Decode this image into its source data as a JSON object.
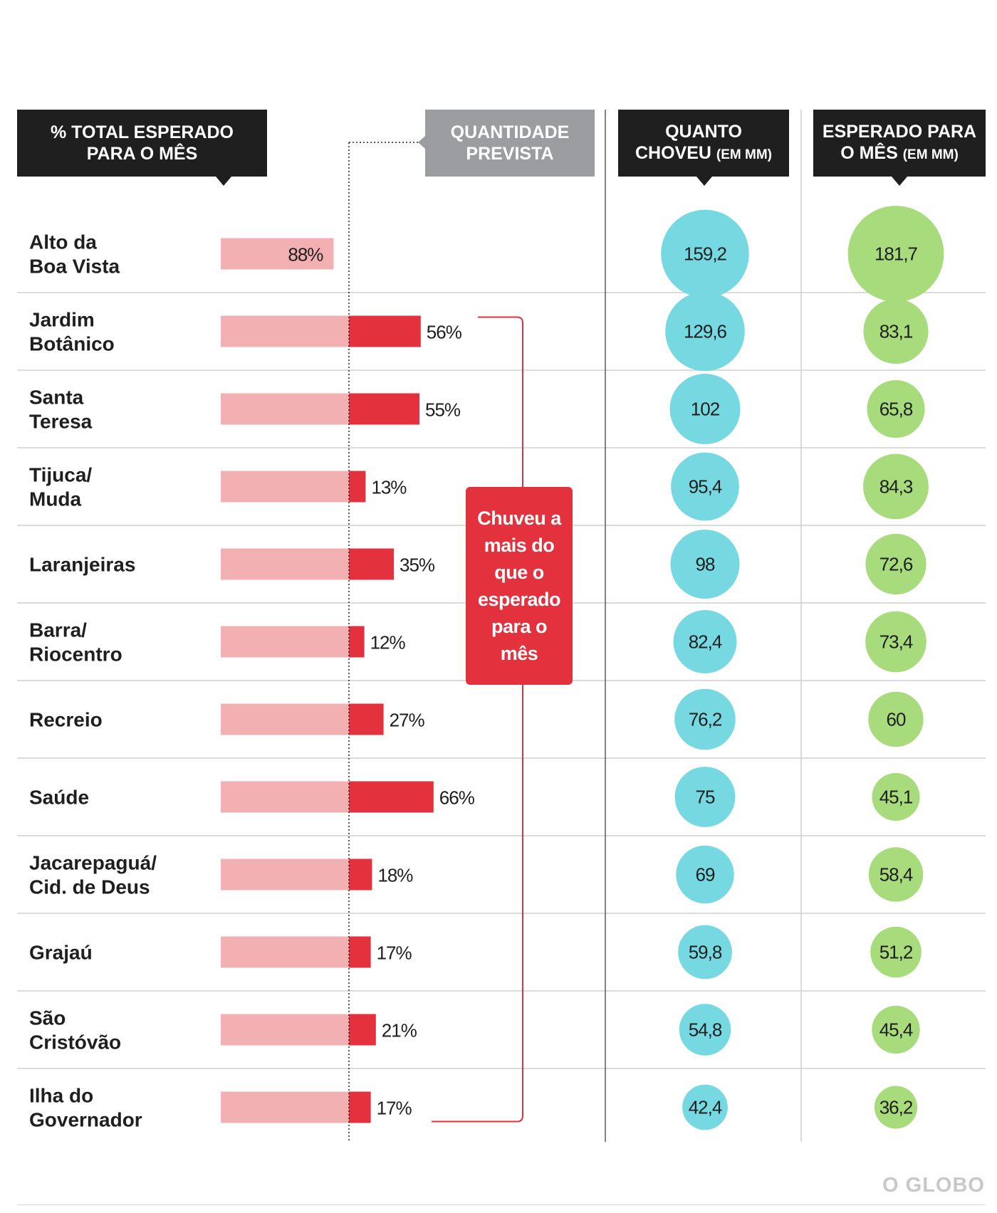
{
  "headers": {
    "pct": [
      "% TOTAL ESPERADO",
      "PARA O MÊS"
    ],
    "prevista": [
      "QUANTIDADE",
      "PREVISTA"
    ],
    "choveu": {
      "line1": "QUANTO",
      "line2": "CHOVEU",
      "unit": "(EM MM)"
    },
    "esperado": {
      "line1": "ESPERADO PARA",
      "line2": "O MÊS",
      "unit": "(EM MM)"
    }
  },
  "callout": "Chuveu a mais do que o esperado para o mês",
  "logo": "O GLOBO",
  "colors": {
    "header_bg": "#1f1f1f",
    "header_gray": "#9c9da1",
    "bar_light": "#f3b0b3",
    "bar_dark": "#e3323d",
    "circle_rain": "#76d9e2",
    "circle_expected": "#a7db7b",
    "text": "#1f1f1f"
  },
  "chart_data": {
    "type": "bar",
    "categories": [
      [
        "Alto da",
        "Boa Vista"
      ],
      [
        "Jardim",
        "Botânico"
      ],
      [
        "Santa",
        "Teresa"
      ],
      [
        "Tijuca/",
        "Muda"
      ],
      [
        "Laranjeiras"
      ],
      [
        "Barra/",
        "Riocentro"
      ],
      [
        "Recreio"
      ],
      [
        "Saúde"
      ],
      [
        "Jacarepaguá/",
        "Cid. de Deus"
      ],
      [
        "Grajaú"
      ],
      [
        "São",
        "Cristóvão"
      ],
      [
        "Ilha do",
        "Governador"
      ]
    ],
    "pct_labels": [
      "88%",
      "56%",
      "55%",
      "13%",
      "35%",
      "12%",
      "27%",
      "66%",
      "18%",
      "17%",
      "21%",
      "17%"
    ],
    "pct_of_expected": [
      88,
      156,
      155,
      113,
      135,
      112,
      127,
      166,
      118,
      117,
      121,
      117
    ],
    "quanto_choveu_labels": [
      "159,2",
      "129,6",
      "102",
      "95,4",
      "98",
      "82,4",
      "76,2",
      "75",
      "69",
      "59,8",
      "54,8",
      "42,4"
    ],
    "quanto_choveu_mm": [
      159.2,
      129.6,
      102,
      95.4,
      98,
      82.4,
      76.2,
      75,
      69,
      59.8,
      54.8,
      42.4
    ],
    "esperado_labels": [
      "181,7",
      "83,1",
      "65,8",
      "84,3",
      "72,6",
      "73,4",
      "60",
      "45,1",
      "58,4",
      "51,2",
      "45,4",
      "36,2"
    ],
    "esperado_mm": [
      181.7,
      83.1,
      65.8,
      84.3,
      72.6,
      73.4,
      60,
      45.1,
      58.4,
      51.2,
      45.4,
      36.2
    ]
  }
}
